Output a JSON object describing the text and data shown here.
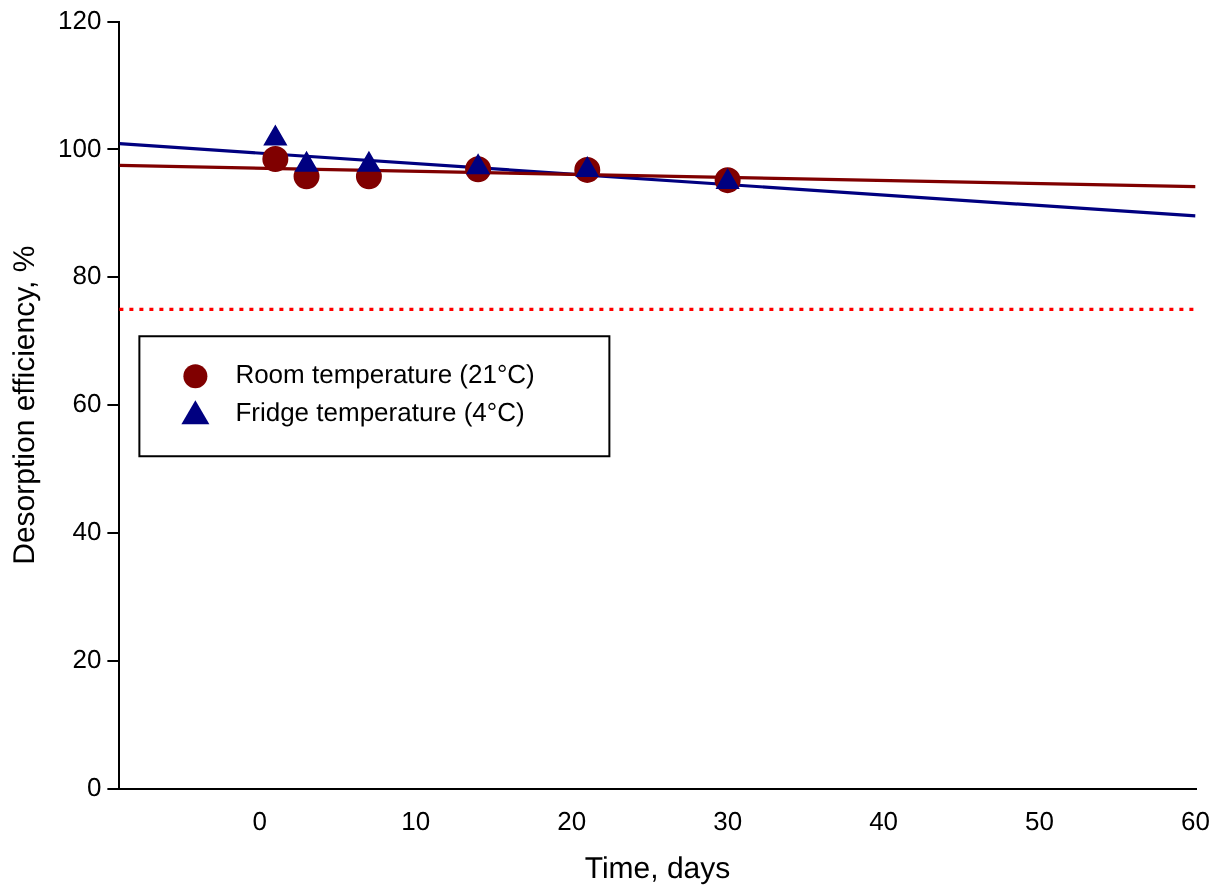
{
  "chart_data": {
    "type": "scatter",
    "xlabel": "Time, days",
    "ylabel": "Desorption efficiency, %",
    "xlim": [
      -9,
      60
    ],
    "xticks": [
      0,
      10,
      20,
      30,
      40,
      50,
      60
    ],
    "ylim": [
      0,
      120
    ],
    "yticks": [
      0,
      20,
      40,
      60,
      80,
      100,
      120
    ],
    "grid": false,
    "legend": "left",
    "series": [
      {
        "name": "Room temperature (21°C)",
        "color": "#800000",
        "marker": "circle",
        "x": [
          1,
          3,
          7,
          14,
          21,
          30
        ],
        "values": [
          98.5,
          95.8,
          95.8,
          96.9,
          96.8,
          95.2
        ]
      },
      {
        "name": "Fridge temperature (4°C)",
        "color": "#000080",
        "marker": "triangle",
        "x": [
          1,
          3,
          7,
          14,
          21,
          30
        ],
        "values": [
          101.7,
          97.6,
          97.6,
          97.2,
          96.8,
          94.9
        ]
      },
      {
        "type": "line",
        "color": "#800000",
        "marker": "none",
        "x": [
          -9,
          60
        ],
        "values": [
          97.5,
          94.2
        ]
      },
      {
        "type": "line",
        "color": "#000080",
        "marker": "none",
        "x": [
          -9,
          60
        ],
        "values": [
          100.9,
          89.6
        ]
      }
    ],
    "ref_lines": [
      {
        "axis": "y",
        "value": 75,
        "color": "#ff0000",
        "line_style": "dotted"
      }
    ]
  }
}
